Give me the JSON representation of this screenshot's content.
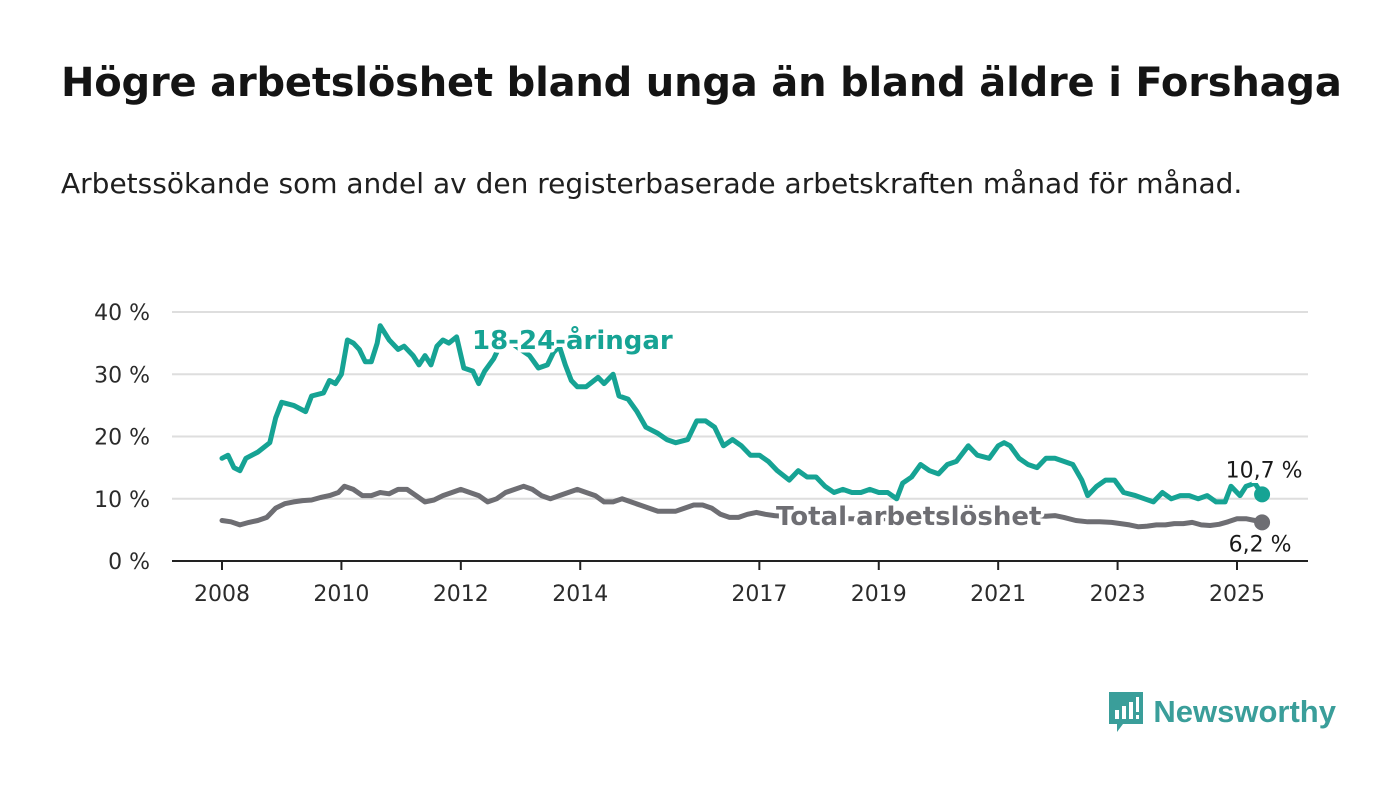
{
  "header": {
    "title": "Högre arbetslöshet bland unga än bland äldre i Forshaga",
    "subtitle": "Arbetssökande som andel av den registerbaserade arbetskraften månad för månad."
  },
  "brand": {
    "name": "Newsworthy",
    "color": "#3a9e9a",
    "icon": "bar-chart-icon"
  },
  "chart_data": {
    "type": "line",
    "title": "Högre arbetslöshet bland unga än bland äldre i Forshaga",
    "subtitle": "Arbetssökande som andel av den registerbaserade arbetskraften månad för månad.",
    "xlabel": "",
    "ylabel": "",
    "x_range": [
      2008,
      2025.42
    ],
    "ylim": [
      0,
      40
    ],
    "y_ticks": [
      0,
      10,
      20,
      30,
      40
    ],
    "y_tick_labels": [
      "0 %",
      "10 %",
      "20 %",
      "30 %",
      "40 %"
    ],
    "x_ticks": [
      2008,
      2010,
      2012,
      2014,
      2017,
      2019,
      2021,
      2023,
      2025
    ],
    "x_tick_labels": [
      "2008",
      "2010",
      "2012",
      "2014",
      "2017",
      "2019",
      "2021",
      "2023",
      "2025"
    ],
    "grid": true,
    "legend": "inline labels",
    "series": [
      {
        "name": "18-24-åringar",
        "color": "#16a394",
        "end_label": "10,7 %",
        "points": [
          [
            2008.0,
            16.5
          ],
          [
            2008.1,
            17.0
          ],
          [
            2008.2,
            15.0
          ],
          [
            2008.3,
            14.5
          ],
          [
            2008.4,
            16.5
          ],
          [
            2008.6,
            17.5
          ],
          [
            2008.8,
            19.0
          ],
          [
            2008.9,
            23.0
          ],
          [
            2009.0,
            25.5
          ],
          [
            2009.2,
            25.0
          ],
          [
            2009.4,
            24.0
          ],
          [
            2009.5,
            26.5
          ],
          [
            2009.7,
            27.0
          ],
          [
            2009.8,
            29.0
          ],
          [
            2009.9,
            28.5
          ],
          [
            2010.0,
            30.0
          ],
          [
            2010.1,
            35.5
          ],
          [
            2010.2,
            35.0
          ],
          [
            2010.3,
            34.0
          ],
          [
            2010.4,
            32.0
          ],
          [
            2010.5,
            32.0
          ],
          [
            2010.6,
            35.0
          ],
          [
            2010.65,
            37.8
          ],
          [
            2010.8,
            35.5
          ],
          [
            2010.95,
            34.0
          ],
          [
            2011.05,
            34.5
          ],
          [
            2011.2,
            33.0
          ],
          [
            2011.3,
            31.5
          ],
          [
            2011.4,
            33.0
          ],
          [
            2011.5,
            31.5
          ],
          [
            2011.6,
            34.5
          ],
          [
            2011.7,
            35.5
          ],
          [
            2011.8,
            35.0
          ],
          [
            2011.93,
            36.0
          ],
          [
            2012.05,
            31.0
          ],
          [
            2012.2,
            30.5
          ],
          [
            2012.3,
            28.5
          ],
          [
            2012.4,
            30.5
          ],
          [
            2012.55,
            32.5
          ],
          [
            2012.7,
            35.5
          ],
          [
            2012.85,
            35.0
          ],
          [
            2013.0,
            34.0
          ],
          [
            2013.15,
            33.0
          ],
          [
            2013.3,
            31.0
          ],
          [
            2013.45,
            31.5
          ],
          [
            2013.55,
            33.5
          ],
          [
            2013.65,
            34.5
          ],
          [
            2013.75,
            31.5
          ],
          [
            2013.85,
            29.0
          ],
          [
            2013.95,
            28.0
          ],
          [
            2014.1,
            28.0
          ],
          [
            2014.3,
            29.5
          ],
          [
            2014.4,
            28.5
          ],
          [
            2014.55,
            30.0
          ],
          [
            2014.65,
            26.5
          ],
          [
            2014.8,
            26.0
          ],
          [
            2014.95,
            24.0
          ],
          [
            2015.1,
            21.5
          ],
          [
            2015.3,
            20.5
          ],
          [
            2015.45,
            19.5
          ],
          [
            2015.6,
            19.0
          ],
          [
            2015.8,
            19.5
          ],
          [
            2015.95,
            22.5
          ],
          [
            2016.1,
            22.5
          ],
          [
            2016.25,
            21.5
          ],
          [
            2016.4,
            18.5
          ],
          [
            2016.55,
            19.5
          ],
          [
            2016.7,
            18.5
          ],
          [
            2016.85,
            17.0
          ],
          [
            2017.0,
            17.0
          ],
          [
            2017.15,
            16.0
          ],
          [
            2017.3,
            14.5
          ],
          [
            2017.5,
            13.0
          ],
          [
            2017.65,
            14.5
          ],
          [
            2017.8,
            13.5
          ],
          [
            2017.95,
            13.5
          ],
          [
            2018.1,
            12.0
          ],
          [
            2018.25,
            11.0
          ],
          [
            2018.4,
            11.5
          ],
          [
            2018.55,
            11.0
          ],
          [
            2018.7,
            11.0
          ],
          [
            2018.85,
            11.5
          ],
          [
            2019.0,
            11.0
          ],
          [
            2019.15,
            11.0
          ],
          [
            2019.3,
            10.0
          ],
          [
            2019.4,
            12.5
          ],
          [
            2019.55,
            13.5
          ],
          [
            2019.7,
            15.5
          ],
          [
            2019.85,
            14.5
          ],
          [
            2020.0,
            14.0
          ],
          [
            2020.15,
            15.5
          ],
          [
            2020.3,
            16.0
          ],
          [
            2020.5,
            18.5
          ],
          [
            2020.65,
            17.0
          ],
          [
            2020.85,
            16.5
          ],
          [
            2021.0,
            18.5
          ],
          [
            2021.1,
            19.0
          ],
          [
            2021.2,
            18.5
          ],
          [
            2021.35,
            16.5
          ],
          [
            2021.5,
            15.5
          ],
          [
            2021.65,
            15.0
          ],
          [
            2021.8,
            16.5
          ],
          [
            2021.95,
            16.5
          ],
          [
            2022.1,
            16.0
          ],
          [
            2022.25,
            15.5
          ],
          [
            2022.4,
            13.0
          ],
          [
            2022.5,
            10.5
          ],
          [
            2022.65,
            12.0
          ],
          [
            2022.8,
            13.0
          ],
          [
            2022.95,
            13.0
          ],
          [
            2023.1,
            11.0
          ],
          [
            2023.3,
            10.5
          ],
          [
            2023.45,
            10.0
          ],
          [
            2023.6,
            9.5
          ],
          [
            2023.75,
            11.0
          ],
          [
            2023.9,
            10.0
          ],
          [
            2024.05,
            10.5
          ],
          [
            2024.2,
            10.5
          ],
          [
            2024.35,
            10.0
          ],
          [
            2024.5,
            10.5
          ],
          [
            2024.65,
            9.5
          ],
          [
            2024.8,
            9.5
          ],
          [
            2024.9,
            12.0
          ],
          [
            2025.05,
            10.5
          ],
          [
            2025.15,
            12.0
          ],
          [
            2025.3,
            12.5
          ],
          [
            2025.42,
            10.7
          ]
        ]
      },
      {
        "name": "Total arbetslöshet",
        "color": "#6e6e73",
        "end_label": "6,2 %",
        "points": [
          [
            2008.0,
            6.5
          ],
          [
            2008.15,
            6.3
          ],
          [
            2008.3,
            5.8
          ],
          [
            2008.45,
            6.2
          ],
          [
            2008.6,
            6.5
          ],
          [
            2008.75,
            7.0
          ],
          [
            2008.9,
            8.5
          ],
          [
            2009.05,
            9.2
          ],
          [
            2009.2,
            9.5
          ],
          [
            2009.35,
            9.7
          ],
          [
            2009.5,
            9.8
          ],
          [
            2009.65,
            10.2
          ],
          [
            2009.8,
            10.5
          ],
          [
            2009.95,
            11.0
          ],
          [
            2010.05,
            12.0
          ],
          [
            2010.2,
            11.5
          ],
          [
            2010.35,
            10.5
          ],
          [
            2010.5,
            10.5
          ],
          [
            2010.65,
            11.0
          ],
          [
            2010.8,
            10.8
          ],
          [
            2010.95,
            11.5
          ],
          [
            2011.1,
            11.5
          ],
          [
            2011.25,
            10.5
          ],
          [
            2011.4,
            9.5
          ],
          [
            2011.55,
            9.8
          ],
          [
            2011.7,
            10.5
          ],
          [
            2011.85,
            11.0
          ],
          [
            2012.0,
            11.5
          ],
          [
            2012.15,
            11.0
          ],
          [
            2012.3,
            10.5
          ],
          [
            2012.45,
            9.5
          ],
          [
            2012.6,
            10.0
          ],
          [
            2012.75,
            11.0
          ],
          [
            2012.9,
            11.5
          ],
          [
            2013.05,
            12.0
          ],
          [
            2013.2,
            11.5
          ],
          [
            2013.35,
            10.5
          ],
          [
            2013.5,
            10.0
          ],
          [
            2013.65,
            10.5
          ],
          [
            2013.8,
            11.0
          ],
          [
            2013.95,
            11.5
          ],
          [
            2014.1,
            11.0
          ],
          [
            2014.25,
            10.5
          ],
          [
            2014.4,
            9.5
          ],
          [
            2014.55,
            9.5
          ],
          [
            2014.7,
            10.0
          ],
          [
            2014.85,
            9.5
          ],
          [
            2015.0,
            9.0
          ],
          [
            2015.15,
            8.5
          ],
          [
            2015.3,
            8.0
          ],
          [
            2015.45,
            8.0
          ],
          [
            2015.6,
            8.0
          ],
          [
            2015.75,
            8.5
          ],
          [
            2015.9,
            9.0
          ],
          [
            2016.05,
            9.0
          ],
          [
            2016.2,
            8.5
          ],
          [
            2016.35,
            7.5
          ],
          [
            2016.5,
            7.0
          ],
          [
            2016.65,
            7.0
          ],
          [
            2016.8,
            7.5
          ],
          [
            2016.95,
            7.8
          ],
          [
            2017.1,
            7.5
          ],
          [
            2017.25,
            7.3
          ],
          [
            2017.4,
            7.2
          ],
          [
            2017.55,
            7.0
          ],
          [
            2017.7,
            7.0
          ],
          [
            2017.85,
            7.0
          ],
          [
            2018.0,
            7.0
          ],
          [
            2018.2,
            6.8
          ],
          [
            2018.4,
            6.8
          ],
          [
            2018.6,
            6.8
          ],
          [
            2018.8,
            6.8
          ],
          [
            2019.0,
            6.8
          ],
          [
            2019.2,
            6.8
          ],
          [
            2019.4,
            7.0
          ],
          [
            2019.6,
            7.0
          ],
          [
            2019.8,
            7.0
          ],
          [
            2020.0,
            7.0
          ],
          [
            2020.2,
            7.2
          ],
          [
            2020.4,
            7.5
          ],
          [
            2020.6,
            7.5
          ],
          [
            2020.8,
            7.5
          ],
          [
            2021.0,
            7.5
          ],
          [
            2021.2,
            7.5
          ],
          [
            2021.4,
            7.5
          ],
          [
            2021.6,
            7.3
          ],
          [
            2021.8,
            7.2
          ],
          [
            2021.95,
            7.3
          ],
          [
            2022.1,
            7.0
          ],
          [
            2022.3,
            6.5
          ],
          [
            2022.5,
            6.3
          ],
          [
            2022.7,
            6.3
          ],
          [
            2022.9,
            6.2
          ],
          [
            2023.05,
            6.0
          ],
          [
            2023.2,
            5.8
          ],
          [
            2023.35,
            5.5
          ],
          [
            2023.5,
            5.6
          ],
          [
            2023.65,
            5.8
          ],
          [
            2023.8,
            5.8
          ],
          [
            2023.95,
            6.0
          ],
          [
            2024.1,
            6.0
          ],
          [
            2024.25,
            6.2
          ],
          [
            2024.4,
            5.8
          ],
          [
            2024.55,
            5.7
          ],
          [
            2024.7,
            5.9
          ],
          [
            2024.85,
            6.3
          ],
          [
            2025.0,
            6.8
          ],
          [
            2025.15,
            6.8
          ],
          [
            2025.3,
            6.5
          ],
          [
            2025.42,
            6.2
          ]
        ]
      }
    ]
  }
}
